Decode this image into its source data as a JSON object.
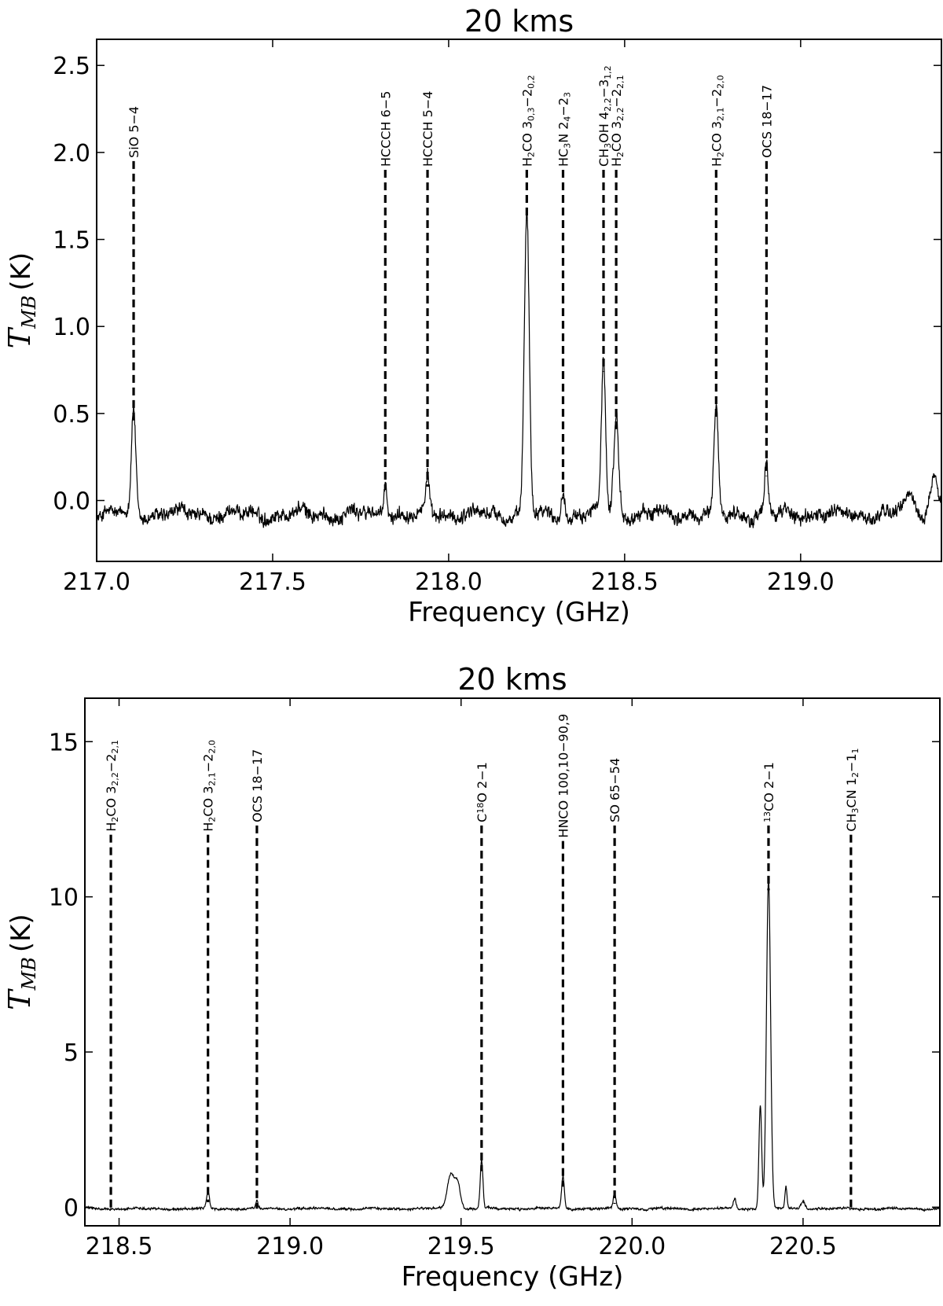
{
  "chart_data": [
    {
      "type": "line",
      "title": "20 kms",
      "xlabel": "Frequency (GHz)",
      "ylabel": {
        "symbol": "T",
        "subscript": "MB",
        "unit": "(K)"
      },
      "xlim": [
        217.0,
        219.4
      ],
      "ylim": [
        -0.35,
        2.65
      ],
      "xticks": [
        {
          "value": 217.0,
          "label": "217.0"
        },
        {
          "value": 217.5,
          "label": "217.5"
        },
        {
          "value": 218.0,
          "label": "218.0"
        },
        {
          "value": 218.5,
          "label": "218.5"
        },
        {
          "value": 219.0,
          "label": "219.0"
        }
      ],
      "yticks": [
        {
          "value": 0.0,
          "label": "0.0"
        },
        {
          "value": 0.5,
          "label": "0.5"
        },
        {
          "value": 1.0,
          "label": "1.0"
        },
        {
          "value": 1.5,
          "label": "1.5"
        },
        {
          "value": 2.0,
          "label": "2.0"
        },
        {
          "value": 2.5,
          "label": "2.5"
        }
      ],
      "baseline": -0.08,
      "noise": 0.035,
      "peaks": [
        {
          "x": 217.105,
          "height": 0.6,
          "width": 0.006
        },
        {
          "x": 217.82,
          "height": 0.2,
          "width": 0.005
        },
        {
          "x": 217.94,
          "height": 0.22,
          "width": 0.005
        },
        {
          "x": 218.222,
          "height": 1.75,
          "width": 0.007
        },
        {
          "x": 218.325,
          "height": 0.15,
          "width": 0.004
        },
        {
          "x": 218.44,
          "height": 0.88,
          "width": 0.006
        },
        {
          "x": 218.476,
          "height": 0.55,
          "width": 0.007
        },
        {
          "x": 218.76,
          "height": 0.6,
          "width": 0.006
        },
        {
          "x": 218.903,
          "height": 0.28,
          "width": 0.005
        },
        {
          "x": 219.31,
          "height": 0.1,
          "width": 0.015
        },
        {
          "x": 219.38,
          "height": 0.22,
          "width": 0.012
        }
      ],
      "lines": [
        {
          "x": 217.105,
          "top": 1.95,
          "label": "SiO 5-4"
        },
        {
          "x": 217.82,
          "top": 1.9,
          "label": "HCCCH 6-5"
        },
        {
          "x": 217.94,
          "top": 1.9,
          "label": "HCCCH 5-4"
        },
        {
          "x": 218.222,
          "top": 1.9,
          "label": "H2CO 30,3-20,2"
        },
        {
          "x": 218.325,
          "top": 1.9,
          "label": "HC3N 24-23"
        },
        {
          "x": 218.44,
          "top": 1.9,
          "label": "CH3OH 42,2-31,2"
        },
        {
          "x": 218.476,
          "top": 1.9,
          "label": "H2CO 32,2-22,1"
        },
        {
          "x": 218.76,
          "top": 1.9,
          "label": "H2CO 32,1-22,0"
        },
        {
          "x": 218.903,
          "top": 1.95,
          "label": "OCS 18-17"
        }
      ]
    },
    {
      "type": "line",
      "title": "20 kms",
      "xlabel": "Frequency (GHz)",
      "ylabel": {
        "symbol": "T",
        "subscript": "MB",
        "unit": "(K)"
      },
      "xlim": [
        218.4,
        220.9
      ],
      "ylim": [
        -0.6,
        16.4
      ],
      "xticks": [
        {
          "value": 218.5,
          "label": "218.5"
        },
        {
          "value": 219.0,
          "label": "219.0"
        },
        {
          "value": 219.5,
          "label": "219.5"
        },
        {
          "value": 220.0,
          "label": "220.0"
        },
        {
          "value": 220.5,
          "label": "220.5"
        }
      ],
      "yticks": [
        {
          "value": 0,
          "label": "0"
        },
        {
          "value": 5,
          "label": "5"
        },
        {
          "value": 10,
          "label": "10"
        },
        {
          "value": 15,
          "label": "15"
        }
      ],
      "baseline": -0.05,
      "noise": 0.03,
      "peaks": [
        {
          "x": 218.76,
          "height": 0.55,
          "width": 0.004
        },
        {
          "x": 218.903,
          "height": 0.25,
          "width": 0.003
        },
        {
          "x": 219.47,
          "height": 1.1,
          "width": 0.01
        },
        {
          "x": 219.49,
          "height": 0.8,
          "width": 0.008
        },
        {
          "x": 219.56,
          "height": 1.55,
          "width": 0.004
        },
        {
          "x": 219.798,
          "height": 1.05,
          "width": 0.004
        },
        {
          "x": 219.949,
          "height": 0.5,
          "width": 0.004
        },
        {
          "x": 220.3,
          "height": 0.35,
          "width": 0.004
        },
        {
          "x": 220.375,
          "height": 3.4,
          "width": 0.004
        },
        {
          "x": 220.399,
          "height": 10.6,
          "width": 0.006
        },
        {
          "x": 220.45,
          "height": 0.7,
          "width": 0.003
        },
        {
          "x": 220.5,
          "height": 0.25,
          "width": 0.006
        }
      ],
      "lines": [
        {
          "x": 218.476,
          "top": 12.0,
          "label": "H2CO 32,2-22,1"
        },
        {
          "x": 218.76,
          "top": 12.0,
          "label": "H2CO 32,1-22,0"
        },
        {
          "x": 218.903,
          "top": 12.3,
          "label": "OCS 18-17"
        },
        {
          "x": 219.56,
          "top": 12.3,
          "label": "C18O 2-1"
        },
        {
          "x": 219.798,
          "top": 11.8,
          "label": "HNCO 100,10-90,9"
        },
        {
          "x": 219.949,
          "top": 12.3,
          "label": "SO 65-54"
        },
        {
          "x": 220.399,
          "top": 12.3,
          "label": "13CO 2-1"
        },
        {
          "x": 220.64,
          "top": 12.0,
          "label": "CH3CN 12-11"
        }
      ]
    }
  ]
}
